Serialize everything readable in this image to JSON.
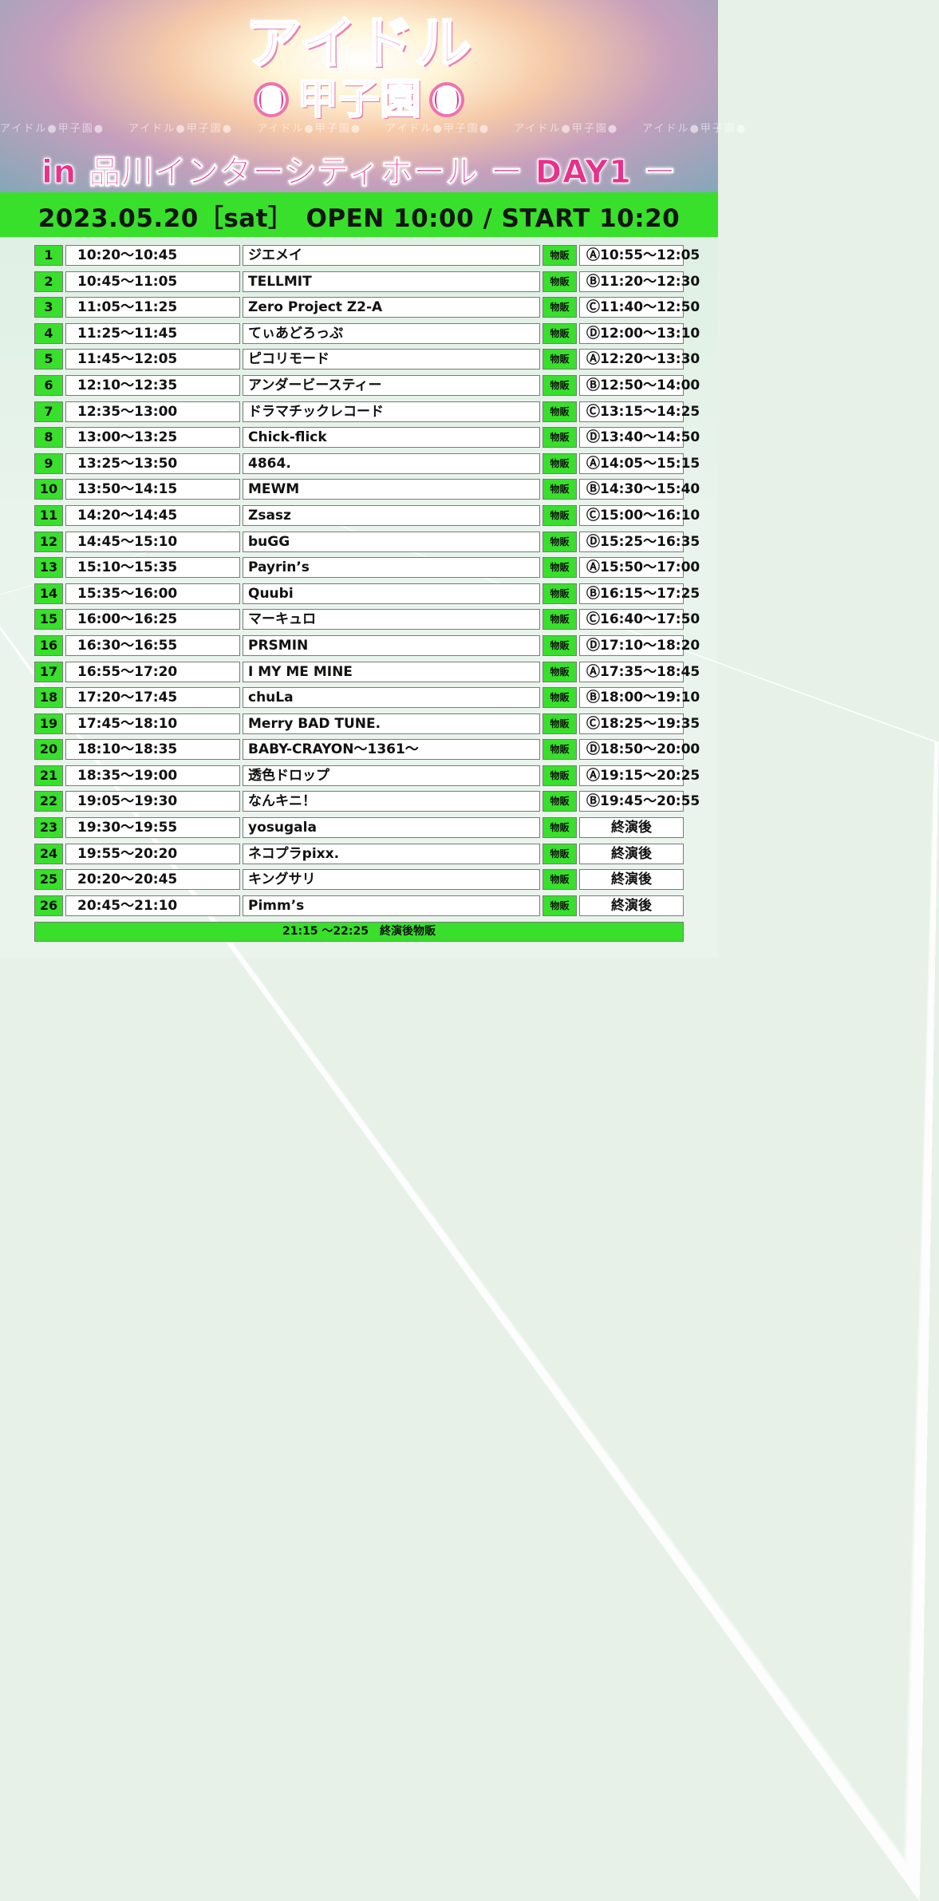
{
  "event": {
    "title_line1": "アイドル",
    "title_line2": "甲子園",
    "stand_text": "アイドル●甲子園●　　アイドル●甲子園●　　アイドル●甲子園●　　アイドル●甲子園●　　アイドル●甲子園●　　アイドル●甲子園●",
    "subtitle": "in 品川インターシティホール ー DAY1 ー",
    "date_line": "2023.05.20［sat］　OPEN 10:00 / START 10:20"
  },
  "goods_tag": "物販",
  "rows": [
    {
      "no": "1",
      "time": "10:20〜10:45",
      "name": "ジエメイ",
      "goods": "Ⓐ10:55〜12:05"
    },
    {
      "no": "2",
      "time": "10:45〜11:05",
      "name": "TELLMIT",
      "goods": "Ⓑ11:20〜12:30"
    },
    {
      "no": "3",
      "time": "11:05〜11:25",
      "name": "Zero Project Z2-A",
      "goods": "Ⓒ11:40〜12:50"
    },
    {
      "no": "4",
      "time": "11:25〜11:45",
      "name": "てぃあどろっぷ",
      "goods": "Ⓓ12:00〜13:10"
    },
    {
      "no": "5",
      "time": "11:45〜12:05",
      "name": "ピコリモード",
      "goods": "Ⓐ12:20〜13:30"
    },
    {
      "no": "6",
      "time": "12:10〜12:35",
      "name": "アンダービースティー",
      "goods": "Ⓑ12:50〜14:00"
    },
    {
      "no": "7",
      "time": "12:35〜13:00",
      "name": "ドラマチックレコード",
      "goods": "Ⓒ13:15〜14:25"
    },
    {
      "no": "8",
      "time": "13:00〜13:25",
      "name": "Chick-flick",
      "goods": "Ⓓ13:40〜14:50"
    },
    {
      "no": "9",
      "time": "13:25〜13:50",
      "name": "4864.",
      "goods": "Ⓐ14:05〜15:15"
    },
    {
      "no": "10",
      "time": "13:50〜14:15",
      "name": "MEWM",
      "goods": "Ⓑ14:30〜15:40"
    },
    {
      "no": "11",
      "time": "14:20〜14:45",
      "name": "Zsasz",
      "goods": "Ⓒ15:00〜16:10"
    },
    {
      "no": "12",
      "time": "14:45〜15:10",
      "name": "buGG",
      "goods": "Ⓓ15:25〜16:35"
    },
    {
      "no": "13",
      "time": "15:10〜15:35",
      "name": "Payrin’s",
      "goods": "Ⓐ15:50〜17:00"
    },
    {
      "no": "14",
      "time": "15:35〜16:00",
      "name": "Quubi",
      "goods": "Ⓑ16:15〜17:25"
    },
    {
      "no": "15",
      "time": "16:00〜16:25",
      "name": "マーキュロ",
      "goods": "Ⓒ16:40〜17:50"
    },
    {
      "no": "16",
      "time": "16:30〜16:55",
      "name": "PRSMIN",
      "goods": "Ⓓ17:10〜18:20"
    },
    {
      "no": "17",
      "time": "16:55〜17:20",
      "name": "I MY ME MINE",
      "goods": "Ⓐ17:35〜18:45"
    },
    {
      "no": "18",
      "time": "17:20〜17:45",
      "name": "chuLa",
      "goods": "Ⓑ18:00〜19:10"
    },
    {
      "no": "19",
      "time": "17:45〜18:10",
      "name": "Merry BAD TUNE.",
      "goods": "Ⓒ18:25〜19:35"
    },
    {
      "no": "20",
      "time": "18:10〜18:35",
      "name": "BABY-CRAYON〜1361〜",
      "goods": "Ⓓ18:50〜20:00"
    },
    {
      "no": "21",
      "time": "18:35〜19:00",
      "name": "透色ドロップ",
      "goods": "Ⓐ19:15〜20:25"
    },
    {
      "no": "22",
      "time": "19:05〜19:30",
      "name": "なんキニ！",
      "goods": "Ⓑ19:45〜20:55"
    },
    {
      "no": "23",
      "time": "19:30〜19:55",
      "name": "yosugala",
      "goods": "終演後"
    },
    {
      "no": "24",
      "time": "19:55〜20:20",
      "name": "ネコプラpixx.",
      "goods": "終演後"
    },
    {
      "no": "25",
      "time": "20:20〜20:45",
      "name": "キングサリ",
      "goods": "終演後"
    },
    {
      "no": "26",
      "time": "20:45〜21:10",
      "name": "Pimm’s",
      "goods": "終演後"
    }
  ],
  "footer": "21:15 〜22:25　終演後物販",
  "colors": {
    "accent_green": "#38e02c",
    "title_pink": "#e8318a",
    "logo_pink": "#f7a8cf"
  }
}
